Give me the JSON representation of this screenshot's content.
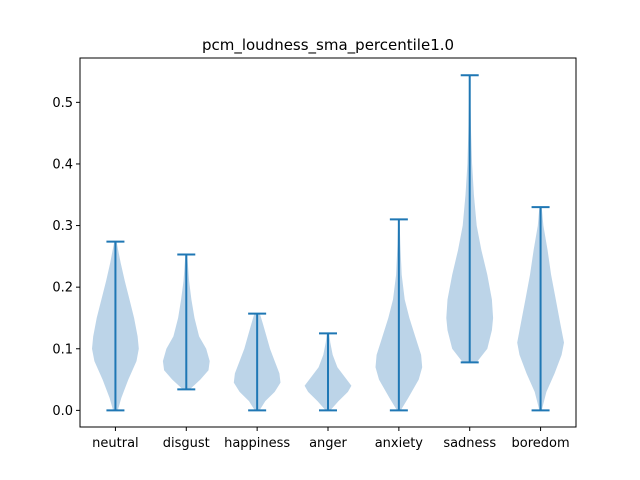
{
  "chart_data": {
    "type": "violin",
    "title": "pcm_loudness_sma_percentile1.0",
    "xlabel": "",
    "ylabel": "",
    "ylim": [
      -0.027,
      0.572
    ],
    "yticks": [
      0.0,
      0.1,
      0.2,
      0.3,
      0.4,
      0.5
    ],
    "ytick_labels": [
      "0.0",
      "0.1",
      "0.2",
      "0.3",
      "0.4",
      "0.5"
    ],
    "categories": [
      "neutral",
      "disgust",
      "happiness",
      "anger",
      "anxiety",
      "sadness",
      "boredom"
    ],
    "fill_color": "#bcd4e8",
    "line_color": "#1f77b4",
    "violins": [
      {
        "name": "neutral",
        "min": 0.0,
        "max": 0.274,
        "profile": [
          [
            0.0,
            0.1
          ],
          [
            0.02,
            0.25
          ],
          [
            0.05,
            0.55
          ],
          [
            0.08,
            0.9
          ],
          [
            0.1,
            1.0
          ],
          [
            0.12,
            0.95
          ],
          [
            0.15,
            0.8
          ],
          [
            0.18,
            0.6
          ],
          [
            0.21,
            0.4
          ],
          [
            0.24,
            0.22
          ],
          [
            0.26,
            0.12
          ],
          [
            0.274,
            0.05
          ]
        ]
      },
      {
        "name": "disgust",
        "min": 0.034,
        "max": 0.253,
        "profile": [
          [
            0.034,
            0.15
          ],
          [
            0.05,
            0.6
          ],
          [
            0.065,
            0.95
          ],
          [
            0.08,
            1.0
          ],
          [
            0.1,
            0.85
          ],
          [
            0.12,
            0.55
          ],
          [
            0.15,
            0.35
          ],
          [
            0.18,
            0.22
          ],
          [
            0.21,
            0.12
          ],
          [
            0.253,
            0.04
          ]
        ]
      },
      {
        "name": "happiness",
        "min": 0.0,
        "max": 0.157,
        "profile": [
          [
            0.0,
            0.1
          ],
          [
            0.015,
            0.35
          ],
          [
            0.03,
            0.75
          ],
          [
            0.045,
            1.0
          ],
          [
            0.06,
            0.95
          ],
          [
            0.08,
            0.75
          ],
          [
            0.1,
            0.55
          ],
          [
            0.12,
            0.4
          ],
          [
            0.14,
            0.25
          ],
          [
            0.157,
            0.12
          ]
        ]
      },
      {
        "name": "anger",
        "min": 0.0,
        "max": 0.125,
        "profile": [
          [
            0.0,
            0.1
          ],
          [
            0.015,
            0.45
          ],
          [
            0.03,
            0.85
          ],
          [
            0.04,
            1.0
          ],
          [
            0.055,
            0.7
          ],
          [
            0.07,
            0.4
          ],
          [
            0.09,
            0.2
          ],
          [
            0.11,
            0.1
          ],
          [
            0.125,
            0.05
          ]
        ]
      },
      {
        "name": "anxiety",
        "min": 0.0,
        "max": 0.31,
        "profile": [
          [
            0.0,
            0.08
          ],
          [
            0.02,
            0.4
          ],
          [
            0.05,
            0.85
          ],
          [
            0.07,
            1.0
          ],
          [
            0.09,
            0.95
          ],
          [
            0.12,
            0.7
          ],
          [
            0.15,
            0.45
          ],
          [
            0.18,
            0.25
          ],
          [
            0.22,
            0.12
          ],
          [
            0.27,
            0.06
          ],
          [
            0.31,
            0.03
          ]
        ]
      },
      {
        "name": "sadness",
        "min": 0.078,
        "max": 0.544,
        "profile": [
          [
            0.078,
            0.3
          ],
          [
            0.1,
            0.75
          ],
          [
            0.13,
            0.95
          ],
          [
            0.15,
            1.0
          ],
          [
            0.18,
            0.95
          ],
          [
            0.22,
            0.75
          ],
          [
            0.26,
            0.5
          ],
          [
            0.3,
            0.3
          ],
          [
            0.35,
            0.18
          ],
          [
            0.4,
            0.1
          ],
          [
            0.45,
            0.06
          ],
          [
            0.5,
            0.03
          ],
          [
            0.544,
            0.02
          ]
        ]
      },
      {
        "name": "boredom",
        "min": 0.0,
        "max": 0.33,
        "profile": [
          [
            0.0,
            0.05
          ],
          [
            0.03,
            0.25
          ],
          [
            0.06,
            0.6
          ],
          [
            0.09,
            0.9
          ],
          [
            0.11,
            1.0
          ],
          [
            0.14,
            0.85
          ],
          [
            0.18,
            0.65
          ],
          [
            0.22,
            0.45
          ],
          [
            0.26,
            0.3
          ],
          [
            0.3,
            0.12
          ],
          [
            0.33,
            0.05
          ]
        ]
      }
    ],
    "grid": false,
    "legend": "none"
  }
}
